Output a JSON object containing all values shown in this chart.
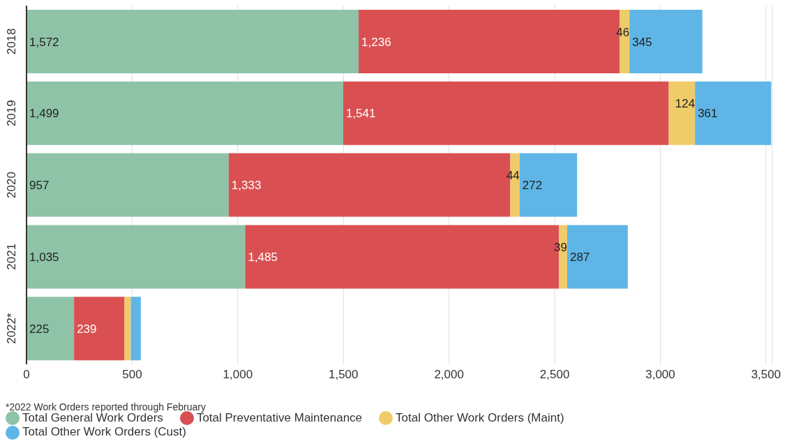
{
  "chart_data": {
    "type": "bar",
    "orientation": "horizontal",
    "stacked": true,
    "categories": [
      "2018",
      "2019",
      "2020",
      "2021",
      "2022*"
    ],
    "series": [
      {
        "name": "Total General Work Orders",
        "color": "#8fc3a8",
        "values": [
          1572,
          1499,
          957,
          1035,
          225
        ],
        "value_labels": [
          "1,572",
          "1,499",
          "957",
          "1,035",
          "225"
        ]
      },
      {
        "name": "Total Preventative Maintenance",
        "color": "#da5052",
        "values": [
          1236,
          1541,
          1333,
          1485,
          239
        ],
        "value_labels": [
          "1,236",
          "1,541",
          "1,333",
          "1,485",
          "239"
        ]
      },
      {
        "name": "Total Other Work Orders (Maint)",
        "color": "#f0cb69",
        "values": [
          46,
          124,
          44,
          39,
          30
        ],
        "value_labels": [
          "46",
          "124",
          "44",
          "39",
          null
        ]
      },
      {
        "name": "Total Other Work Orders (Cust)",
        "color": "#5fb6e6",
        "values": [
          345,
          361,
          272,
          287,
          47
        ],
        "value_labels": [
          "345",
          "361",
          "272",
          "287",
          null
        ]
      }
    ],
    "xlim": [
      0,
      3530
    ],
    "xticks": [
      0,
      500,
      {
        "value": 1000,
        "label": "1,000"
      },
      {
        "value": 1500,
        "label": "1,500"
      },
      {
        "value": 2000,
        "label": "2,000"
      },
      {
        "value": 2500,
        "label": "2,500"
      },
      {
        "value": 3000,
        "label": "3,000"
      },
      {
        "value": 3500,
        "label": "3,500"
      }
    ],
    "grid": "x",
    "legend": "bottom",
    "annotations": [
      "*2022 Work Orders reported through February"
    ]
  }
}
